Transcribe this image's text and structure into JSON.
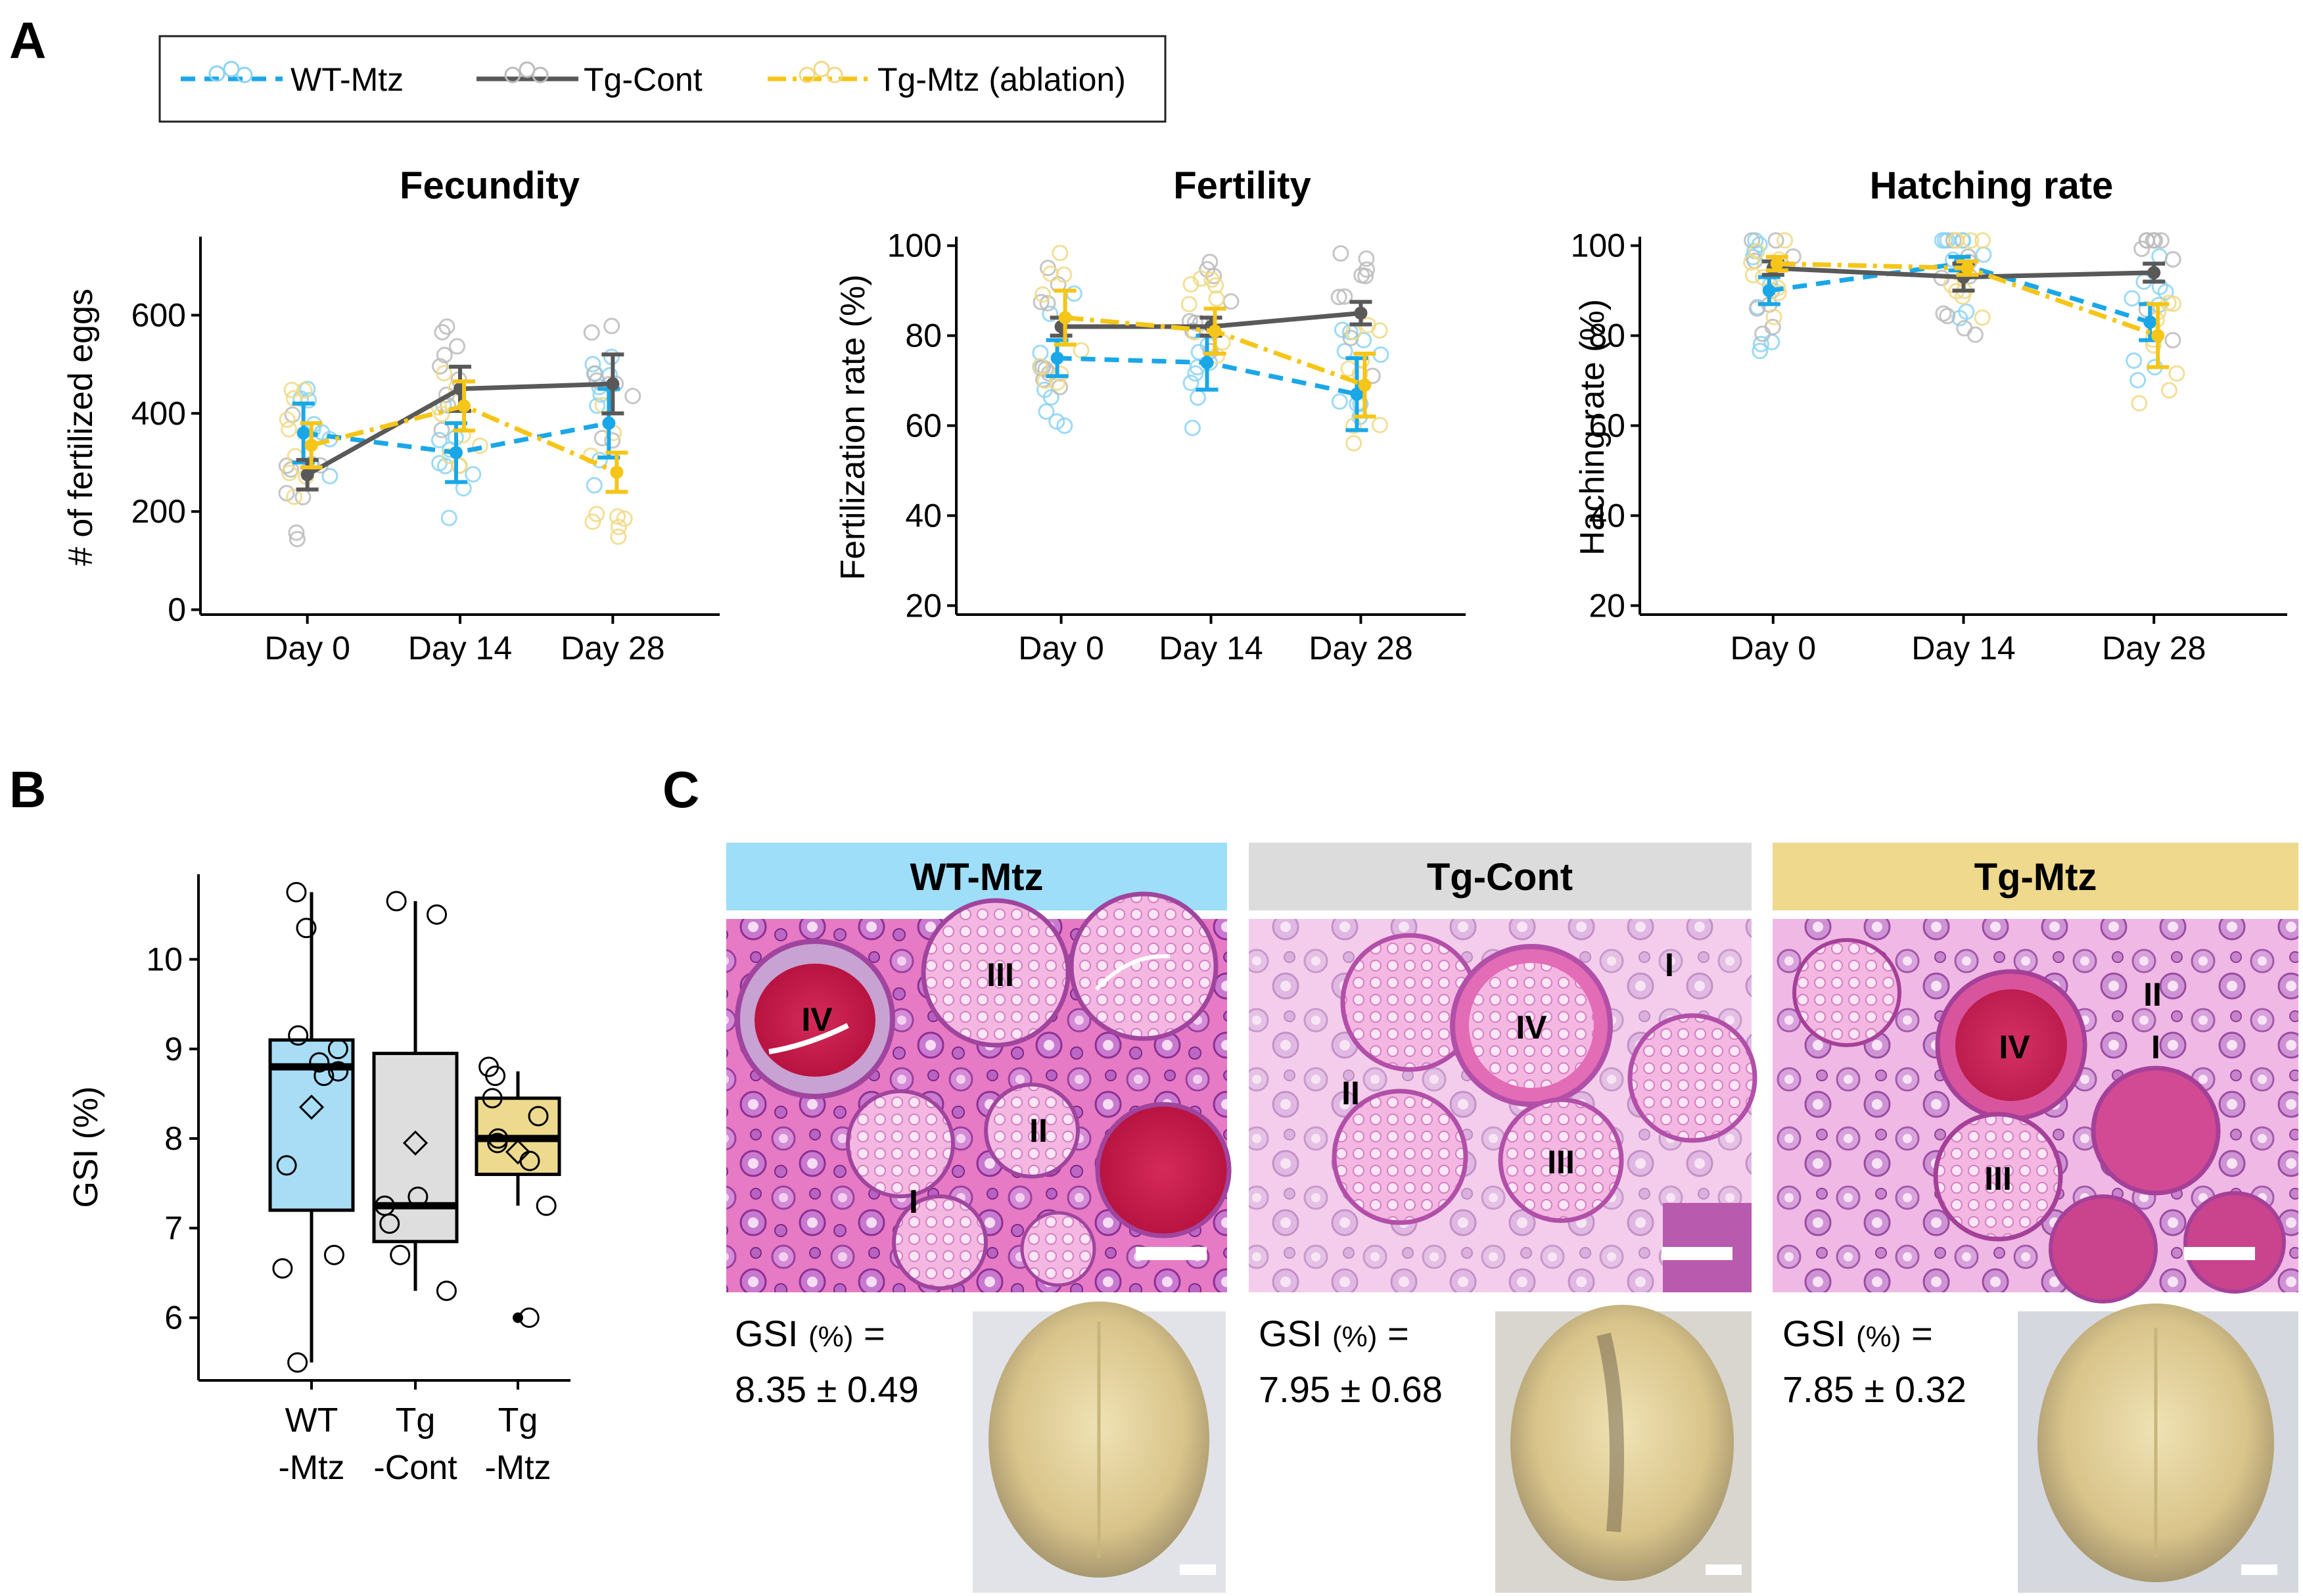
{
  "figure": {
    "panel_labels": [
      "A",
      "B",
      "C"
    ],
    "legend": [
      {
        "label": "WT-Mtz",
        "color": "#1AA7E8",
        "style": "dashed"
      },
      {
        "label": "Tg-Cont",
        "color": "#595959",
        "style": "solid"
      },
      {
        "label": "Tg-Mtz (ablation)",
        "color": "#F5C518",
        "style": "dashdot"
      }
    ]
  },
  "chart_data": [
    {
      "type": "line",
      "title": "Fecundity",
      "xlabel": "",
      "ylabel": "# of fertilized eggs",
      "categories": [
        "Day 0",
        "Day 14",
        "Day 28"
      ],
      "ylim": [
        -10,
        760
      ],
      "yticks": [
        0,
        200,
        400,
        600
      ],
      "series": [
        {
          "name": "WT-Mtz",
          "values": [
            360,
            320,
            380
          ],
          "err": [
            60,
            60,
            70
          ]
        },
        {
          "name": "Tg-Cont",
          "values": [
            275,
            450,
            460
          ],
          "err": [
            30,
            45,
            60
          ]
        },
        {
          "name": "Tg-Mtz (ablation)",
          "values": [
            335,
            415,
            280
          ],
          "err": [
            45,
            50,
            40
          ]
        }
      ]
    },
    {
      "type": "line",
      "title": "Fertility",
      "xlabel": "",
      "ylabel": "Fertilization rate (%)",
      "categories": [
        "Day 0",
        "Day 14",
        "Day 28"
      ],
      "ylim": [
        18,
        102
      ],
      "yticks": [
        20,
        40,
        60,
        80,
        100
      ],
      "series": [
        {
          "name": "WT-Mtz",
          "values": [
            75,
            74,
            67
          ],
          "err": [
            4,
            6,
            8
          ]
        },
        {
          "name": "Tg-Cont",
          "values": [
            82,
            82,
            85
          ],
          "err": [
            2,
            2,
            2.5
          ]
        },
        {
          "name": "Tg-Mtz (ablation)",
          "values": [
            84,
            81,
            69
          ],
          "err": [
            6,
            5,
            7
          ]
        }
      ]
    },
    {
      "type": "line",
      "title": "Hatching rate",
      "xlabel": "",
      "ylabel": "Haching rate (%)",
      "categories": [
        "Day 0",
        "Day 14",
        "Day 28"
      ],
      "ylim": [
        18,
        102
      ],
      "yticks": [
        20,
        40,
        60,
        80,
        100
      ],
      "series": [
        {
          "name": "WT-Mtz",
          "values": [
            90,
            96,
            83
          ],
          "err": [
            3,
            1.5,
            4
          ]
        },
        {
          "name": "Tg-Cont",
          "values": [
            95,
            93,
            94
          ],
          "err": [
            1.5,
            3,
            2
          ]
        },
        {
          "name": "Tg-Mtz (ablation)",
          "values": [
            96,
            95,
            80
          ],
          "err": [
            1.5,
            1.5,
            7
          ]
        }
      ]
    },
    {
      "type": "box",
      "title": "",
      "xlabel": "",
      "ylabel": "GSI (%)",
      "categories": [
        "WT\n-Mtz",
        "Tg\n-Cont",
        "Tg\n-Mtz"
      ],
      "category_lines": [
        [
          "WT",
          "-Mtz"
        ],
        [
          "Tg",
          "-Cont"
        ],
        [
          "Tg",
          "-Mtz"
        ]
      ],
      "ylim": [
        5.3,
        10.95
      ],
      "yticks": [
        6,
        7,
        8,
        9,
        10
      ],
      "boxes": [
        {
          "name": "WT-Mtz",
          "color": "#A8DDF5",
          "whisker_low": 5.5,
          "q1": 7.2,
          "median": 8.8,
          "q3": 9.1,
          "whisker_high": 10.75,
          "mean": 8.35,
          "points": [
            10.75,
            10.35,
            9.15,
            9.0,
            8.85,
            8.75,
            8.7,
            7.7,
            6.7,
            6.55,
            5.5
          ],
          "outliers": []
        },
        {
          "name": "Tg-Cont",
          "color": "#DEDEDE",
          "whisker_low": 6.3,
          "q1": 6.85,
          "median": 7.25,
          "q3": 8.95,
          "whisker_high": 10.65,
          "mean": 7.95,
          "points": [
            10.65,
            10.5,
            7.35,
            7.25,
            7.05,
            6.7,
            6.3
          ],
          "outliers": []
        },
        {
          "name": "Tg-Mtz",
          "color": "#EEDA8E",
          "whisker_low": 7.25,
          "q1": 7.6,
          "median": 8.0,
          "q3": 8.45,
          "whisker_high": 8.75,
          "mean": 7.85,
          "points": [
            8.8,
            8.7,
            8.45,
            8.25,
            8.0,
            7.95,
            7.75,
            7.25,
            6.0
          ],
          "outliers": [
            6.0
          ]
        }
      ]
    }
  ],
  "histology": [
    {
      "label": "WT-Mtz",
      "color": "#9EDEF8",
      "stages": [
        "IV",
        "III",
        "II",
        "I"
      ],
      "gsi_prefix": "GSI",
      "gsi_unit": "(%)",
      "gsi_eq": "=",
      "gsi_value": "8.35 ± 0.49"
    },
    {
      "label": "Tg-Cont",
      "color": "#DCDCDC",
      "stages": [
        "IV",
        "III",
        "II",
        "I"
      ],
      "gsi_prefix": "GSI",
      "gsi_unit": "(%)",
      "gsi_eq": "=",
      "gsi_value": "7.95 ± 0.68"
    },
    {
      "label": "Tg-Mtz",
      "color": "#EED98C",
      "stages": [
        "IV",
        "III",
        "II",
        "I"
      ],
      "gsi_prefix": "GSI",
      "gsi_unit": "(%)",
      "gsi_eq": "=",
      "gsi_value": "7.85 ± 0.32"
    }
  ]
}
